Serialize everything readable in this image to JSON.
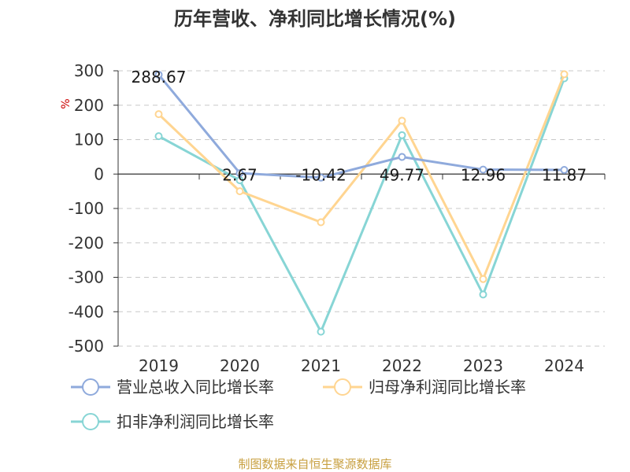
{
  "chart_data": {
    "type": "line",
    "title": "历年营收、净利同比增长情况(%)",
    "unit_label": "%",
    "categories": [
      "2019",
      "2020",
      "2021",
      "2022",
      "2023",
      "2024"
    ],
    "ylim": [
      -500,
      300
    ],
    "yticks": [
      300,
      200,
      100,
      0,
      -100,
      -200,
      -300,
      -400,
      -500
    ],
    "grid": true,
    "legend_position": "bottom",
    "series": [
      {
        "name": "营业总收入同比增长率",
        "color": "#8faadc",
        "values": [
          288.67,
          2.67,
          -10.42,
          49.77,
          12.96,
          11.87
        ],
        "labels": [
          "288.67",
          "2.67",
          "-10.42",
          "49.77",
          "12.96",
          "11.87"
        ]
      },
      {
        "name": "归母净利润同比增长率",
        "color": "#ffd591",
        "values": [
          174,
          -50,
          -140,
          155,
          -305,
          290
        ]
      },
      {
        "name": "扣非净利润同比增长率",
        "color": "#87d5d5",
        "values": [
          110,
          -18,
          -458,
          113,
          -350,
          278
        ]
      }
    ]
  },
  "footer": {
    "source": "制图数据来自恒生聚源数据库"
  }
}
